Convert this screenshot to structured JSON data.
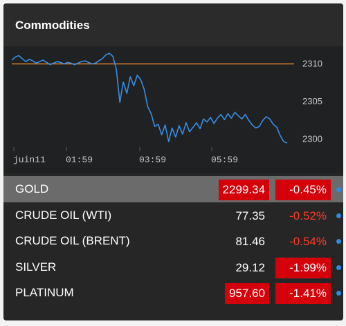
{
  "widget": {
    "title": "Commodities"
  },
  "chart_data": {
    "type": "line",
    "x_ticks": [
      "juin11",
      "01:59",
      "03:59",
      "05:59"
    ],
    "y_ticks": [
      "2310",
      "2305",
      "2300"
    ],
    "ylim": [
      2298.5,
      2311.5
    ],
    "reference_line": 2309.9,
    "colors": {
      "line": "#3a8ee6",
      "reference": "#d9822b"
    },
    "series": [
      {
        "values": [
          2310.4,
          2310.8,
          2311.0,
          2310.6,
          2310.2,
          2310.5,
          2310.3,
          2310.0,
          2310.2,
          2310.4,
          2310.1,
          2309.8,
          2310.0,
          2310.2,
          2310.1,
          2309.9,
          2310.1,
          2310.0,
          2309.8,
          2310.0,
          2310.2,
          2310.3,
          2310.1,
          2309.9,
          2310.0,
          2310.3,
          2310.6,
          2311.1,
          2311.3,
          2310.9,
          2309.2,
          2304.8,
          2307.5,
          2306.0,
          2308.2,
          2307.0,
          2308.4,
          2307.8,
          2306.5,
          2304.2,
          2303.3,
          2301.6,
          2301.9,
          2300.5,
          2301.8,
          2299.6,
          2301.4,
          2300.2,
          2301.7,
          2300.6,
          2302.1,
          2300.9,
          2301.5,
          2302.1,
          2301.3,
          2302.6,
          2302.2,
          2302.8,
          2302.0,
          2302.7,
          2303.2,
          2302.5,
          2303.3,
          2302.7,
          2303.5,
          2303.0,
          2302.6,
          2303.2,
          2302.4,
          2301.8,
          2301.4,
          2301.6,
          2302.4,
          2302.9,
          2302.6,
          2301.9,
          2301.5,
          2300.4,
          2299.6,
          2299.4
        ]
      }
    ]
  },
  "commodities": [
    {
      "name": "GOLD",
      "price": "2299.34",
      "change": "-0.45%",
      "selected": true,
      "price_highlight": true,
      "change_highlight": true
    },
    {
      "name": "CRUDE OIL (WTI)",
      "price": "77.35",
      "change": "-0.52%",
      "selected": false,
      "price_highlight": false,
      "change_highlight": false
    },
    {
      "name": "CRUDE OIL (BRENT)",
      "price": "81.46",
      "change": "-0.54%",
      "selected": false,
      "price_highlight": false,
      "change_highlight": false
    },
    {
      "name": "SILVER",
      "price": "29.12",
      "change": "-1.99%",
      "selected": false,
      "price_highlight": false,
      "change_highlight": true
    },
    {
      "name": "PLATINUM",
      "price": "957.60",
      "change": "-1.41%",
      "selected": false,
      "price_highlight": true,
      "change_highlight": true
    }
  ]
}
